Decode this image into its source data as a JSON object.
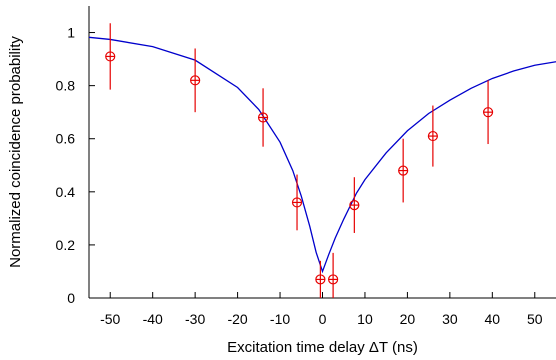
{
  "chart_data": {
    "type": "scatter",
    "xlabel": "Excitation time delay ΔT (ns)",
    "ylabel": "Normalized coincidence probability",
    "xlim": [
      -55,
      55
    ],
    "ylim": [
      0,
      1.1
    ],
    "x_ticks": [
      -50,
      -40,
      -30,
      -20,
      -10,
      0,
      10,
      20,
      30,
      40,
      50
    ],
    "x_tick_labels": [
      "-50",
      "-40",
      "-30",
      "-20",
      "-10",
      "0",
      "10",
      "20",
      "30",
      "40",
      "50"
    ],
    "y_ticks": [
      0,
      0.2,
      0.4,
      0.6,
      0.8,
      1
    ],
    "y_tick_labels": [
      "0",
      "0.2",
      "0.4",
      "0.6",
      "0.8",
      "1"
    ],
    "grid": false,
    "series": [
      {
        "type": "scatter",
        "color": "#e60000",
        "marker": "circle-cross",
        "points": [
          {
            "x": -50,
            "y": 0.91,
            "err": 0.125
          },
          {
            "x": -30,
            "y": 0.82,
            "err": 0.12
          },
          {
            "x": -14,
            "y": 0.68,
            "err": 0.11
          },
          {
            "x": -6,
            "y": 0.36,
            "err": 0.105
          },
          {
            "x": -0.5,
            "y": 0.07,
            "err": 0.07
          },
          {
            "x": 2.5,
            "y": 0.07,
            "err": 0.1
          },
          {
            "x": 7.5,
            "y": 0.35,
            "err": 0.105
          },
          {
            "x": 19,
            "y": 0.48,
            "err": 0.12
          },
          {
            "x": 26,
            "y": 0.61,
            "err": 0.115
          },
          {
            "x": 39,
            "y": 0.7,
            "err": 0.12
          }
        ]
      },
      {
        "type": "line",
        "color": "#0000cc",
        "curve": [
          {
            "x": -55,
            "y": 0.982
          },
          {
            "x": -50,
            "y": 0.974
          },
          {
            "x": -40,
            "y": 0.947
          },
          {
            "x": -30,
            "y": 0.896
          },
          {
            "x": -20,
            "y": 0.793
          },
          {
            "x": -15,
            "y": 0.71
          },
          {
            "x": -10,
            "y": 0.587
          },
          {
            "x": -7,
            "y": 0.48
          },
          {
            "x": -5,
            "y": 0.384
          },
          {
            "x": -3,
            "y": 0.27
          },
          {
            "x": -1.5,
            "y": 0.172
          },
          {
            "x": 0,
            "y": 0.1
          },
          {
            "x": 1.5,
            "y": 0.165
          },
          {
            "x": 3,
            "y": 0.226
          },
          {
            "x": 5,
            "y": 0.297
          },
          {
            "x": 8,
            "y": 0.395
          },
          {
            "x": 10,
            "y": 0.446
          },
          {
            "x": 15,
            "y": 0.547
          },
          {
            "x": 20,
            "y": 0.63
          },
          {
            "x": 25,
            "y": 0.695
          },
          {
            "x": 30,
            "y": 0.745
          },
          {
            "x": 35,
            "y": 0.79
          },
          {
            "x": 40,
            "y": 0.827
          },
          {
            "x": 45,
            "y": 0.855
          },
          {
            "x": 50,
            "y": 0.877
          },
          {
            "x": 55,
            "y": 0.89
          }
        ]
      }
    ]
  }
}
